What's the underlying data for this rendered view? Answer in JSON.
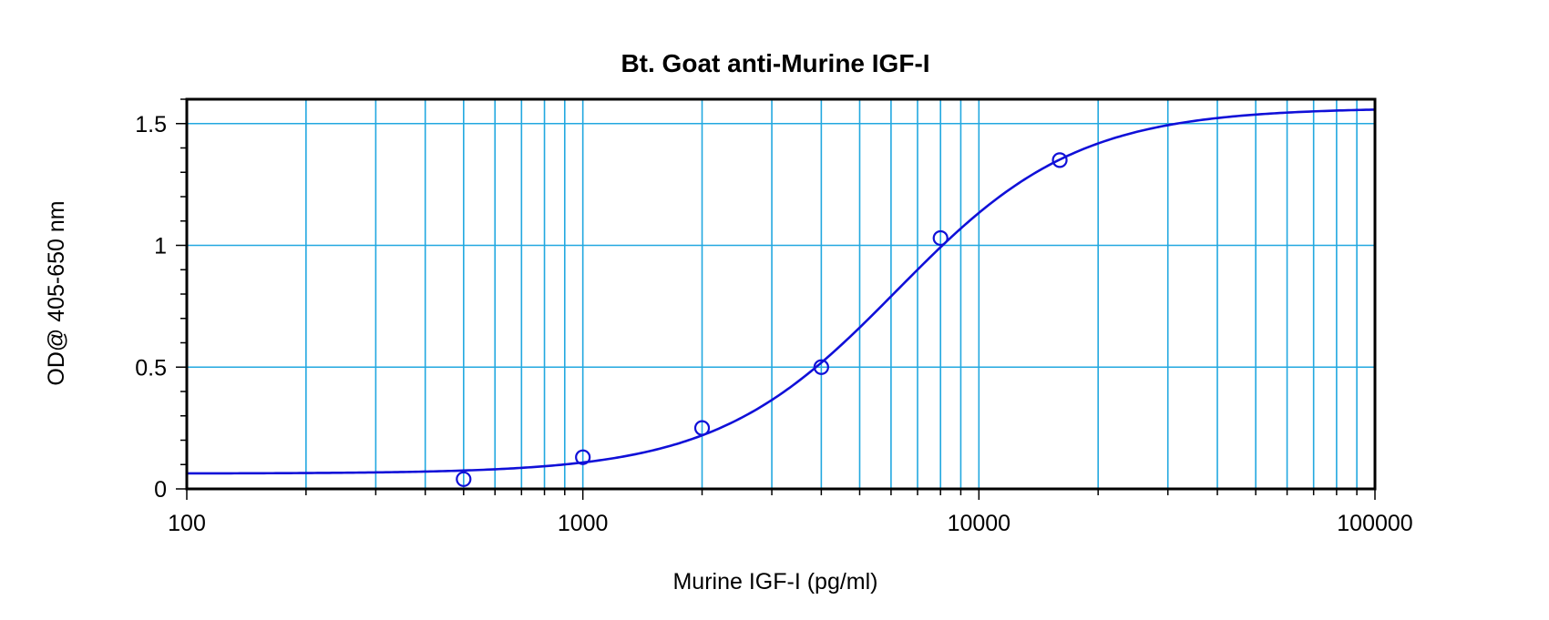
{
  "chart_data": {
    "type": "scatter",
    "title": "Bt. Goat anti-Murine IGF-I",
    "xlabel": "Murine IGF-I (pg/ml)",
    "ylabel": "OD@ 405-650 nm",
    "x_scale": "log",
    "xlim": [
      100,
      100000
    ],
    "ylim": [
      0,
      1.6
    ],
    "x_ticks": [
      100,
      1000,
      10000,
      100000
    ],
    "x_tick_labels": [
      "100",
      "1000",
      "10000",
      "100000"
    ],
    "y_ticks": [
      0,
      0.5,
      1,
      1.5
    ],
    "y_tick_labels": [
      "0",
      "0.5",
      "1",
      "1.5"
    ],
    "grid": true,
    "legend": "none",
    "series": [
      {
        "marker": "open-circle",
        "x": [
          500,
          1000,
          2000,
          4000,
          8000,
          16000
        ],
        "y": [
          0.04,
          0.13,
          0.25,
          0.5,
          1.03,
          1.35
        ]
      }
    ],
    "fit_curve": {
      "type": "4PL",
      "bottom": 0.063,
      "top": 1.565,
      "ec50": 6200,
      "hill": 1.9
    },
    "colors": {
      "series": "#1010d8",
      "grid": "#22a8e0",
      "axes": "#000000"
    }
  }
}
